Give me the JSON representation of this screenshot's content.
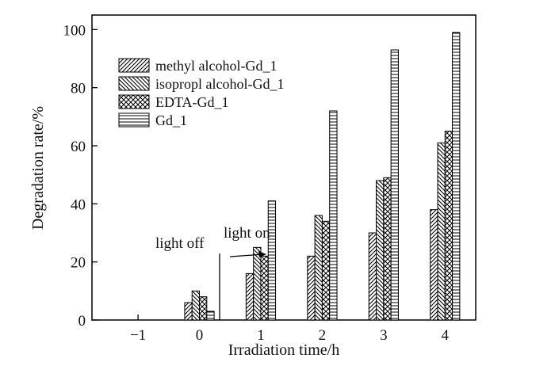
{
  "chart_data": {
    "type": "bar",
    "xlabel": "Irradiation time/h",
    "ylabel": "Degradation rate/%",
    "x_ticks": [
      "−1",
      "0",
      "1",
      "2",
      "3",
      "4"
    ],
    "x_tick_values": [
      -1,
      0,
      1,
      2,
      3,
      4
    ],
    "xlim": [
      -1.75,
      4.5
    ],
    "ylim": [
      0,
      105
    ],
    "y_ticks": [
      "0",
      "20",
      "40",
      "60",
      "80",
      "100"
    ],
    "y_tick_values": [
      0,
      20,
      40,
      60,
      80,
      100
    ],
    "legend_position": "top-left",
    "categories": [
      "0",
      "1",
      "2",
      "3",
      "4"
    ],
    "category_values": [
      0,
      1,
      2,
      3,
      4
    ],
    "series": [
      {
        "name": "methyl alcohol-Gd_1",
        "pattern": "diagonal-up",
        "values": [
          6,
          16,
          22,
          30,
          38
        ]
      },
      {
        "name": "isopropl alcohol-Gd_1",
        "pattern": "diagonal-down",
        "values": [
          10,
          25,
          36,
          48,
          61
        ]
      },
      {
        "name": "EDTA-Gd_1",
        "pattern": "crosshatch",
        "values": [
          8,
          22,
          34,
          49,
          65
        ]
      },
      {
        "name": "Gd_1",
        "pattern": "horizontal",
        "values": [
          3,
          41,
          72,
          93,
          99
        ]
      }
    ],
    "annotations": [
      {
        "text": "light off"
      },
      {
        "text": "light on"
      }
    ]
  }
}
